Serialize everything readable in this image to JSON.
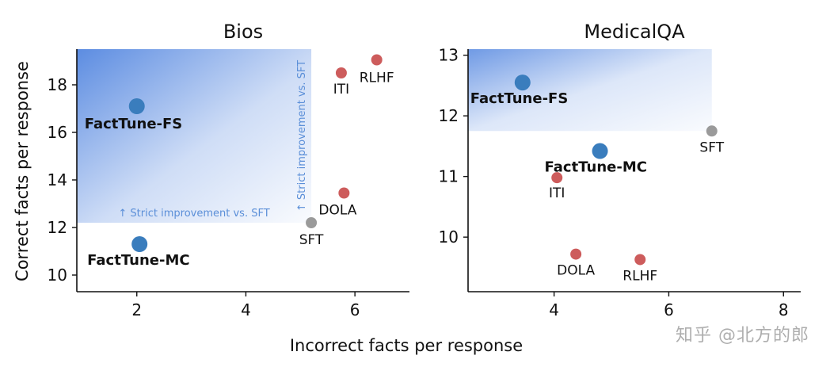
{
  "xlabel_shared": "Incorrect facts per response",
  "ylabel_shared": "Correct facts per response",
  "watermark": "知乎 @北方的郎",
  "colors": {
    "factTune": "#3a7dbd",
    "baseline": "#cd5c5c",
    "sft": "#9a9a9a",
    "improve": "#3f78dc",
    "arrowText": "#5b8fd8"
  },
  "chart_data": [
    {
      "type": "scatter",
      "title": "Bios",
      "xlim": [
        0.9,
        7.0
      ],
      "ylim": [
        9.3,
        19.5
      ],
      "xticks": [
        2,
        4,
        6
      ],
      "yticks": [
        10,
        12,
        14,
        16,
        18
      ],
      "improvement_region": {
        "x": [
          0.9,
          5.2
        ],
        "y": [
          12.2,
          19.5
        ]
      },
      "annotations": [
        {
          "text": "↑ Strict improvement vs. SFT",
          "orientation": "horizontal"
        },
        {
          "text": "↑ Strict improvement vs. SFT",
          "orientation": "vertical"
        }
      ],
      "points": [
        {
          "label": "FactTune-FS",
          "x": 2.0,
          "y": 17.1,
          "group": "factTune",
          "bold": true
        },
        {
          "label": "FactTune-MC",
          "x": 2.05,
          "y": 11.3,
          "group": "factTune",
          "bold": true
        },
        {
          "label": "ITI",
          "x": 5.75,
          "y": 18.5,
          "group": "baseline",
          "bold": false
        },
        {
          "label": "RLHF",
          "x": 6.4,
          "y": 19.05,
          "group": "baseline",
          "bold": false
        },
        {
          "label": "DOLA",
          "x": 5.8,
          "y": 13.45,
          "group": "baseline",
          "bold": false
        },
        {
          "label": "SFT",
          "x": 5.2,
          "y": 12.2,
          "group": "sft",
          "bold": false
        }
      ]
    },
    {
      "type": "scatter",
      "title": "MedicalQA",
      "xlim": [
        2.5,
        8.3
      ],
      "ylim": [
        9.1,
        13.1
      ],
      "xticks": [
        4,
        6,
        8
      ],
      "yticks": [
        10,
        11,
        12,
        13
      ],
      "improvement_region": {
        "x": [
          2.5,
          6.75
        ],
        "y": [
          11.75,
          13.1
        ]
      },
      "annotations": [],
      "points": [
        {
          "label": "FactTune-FS",
          "x": 3.45,
          "y": 12.55,
          "group": "factTune",
          "bold": true
        },
        {
          "label": "FactTune-MC",
          "x": 4.8,
          "y": 11.42,
          "group": "factTune",
          "bold": true
        },
        {
          "label": "SFT",
          "x": 6.75,
          "y": 11.75,
          "group": "sft",
          "bold": false
        },
        {
          "label": "ITI",
          "x": 4.05,
          "y": 10.98,
          "group": "baseline",
          "bold": false
        },
        {
          "label": "DOLA",
          "x": 4.38,
          "y": 9.72,
          "group": "baseline",
          "bold": false
        },
        {
          "label": "RLHF",
          "x": 5.5,
          "y": 9.63,
          "group": "baseline",
          "bold": false
        }
      ]
    }
  ]
}
